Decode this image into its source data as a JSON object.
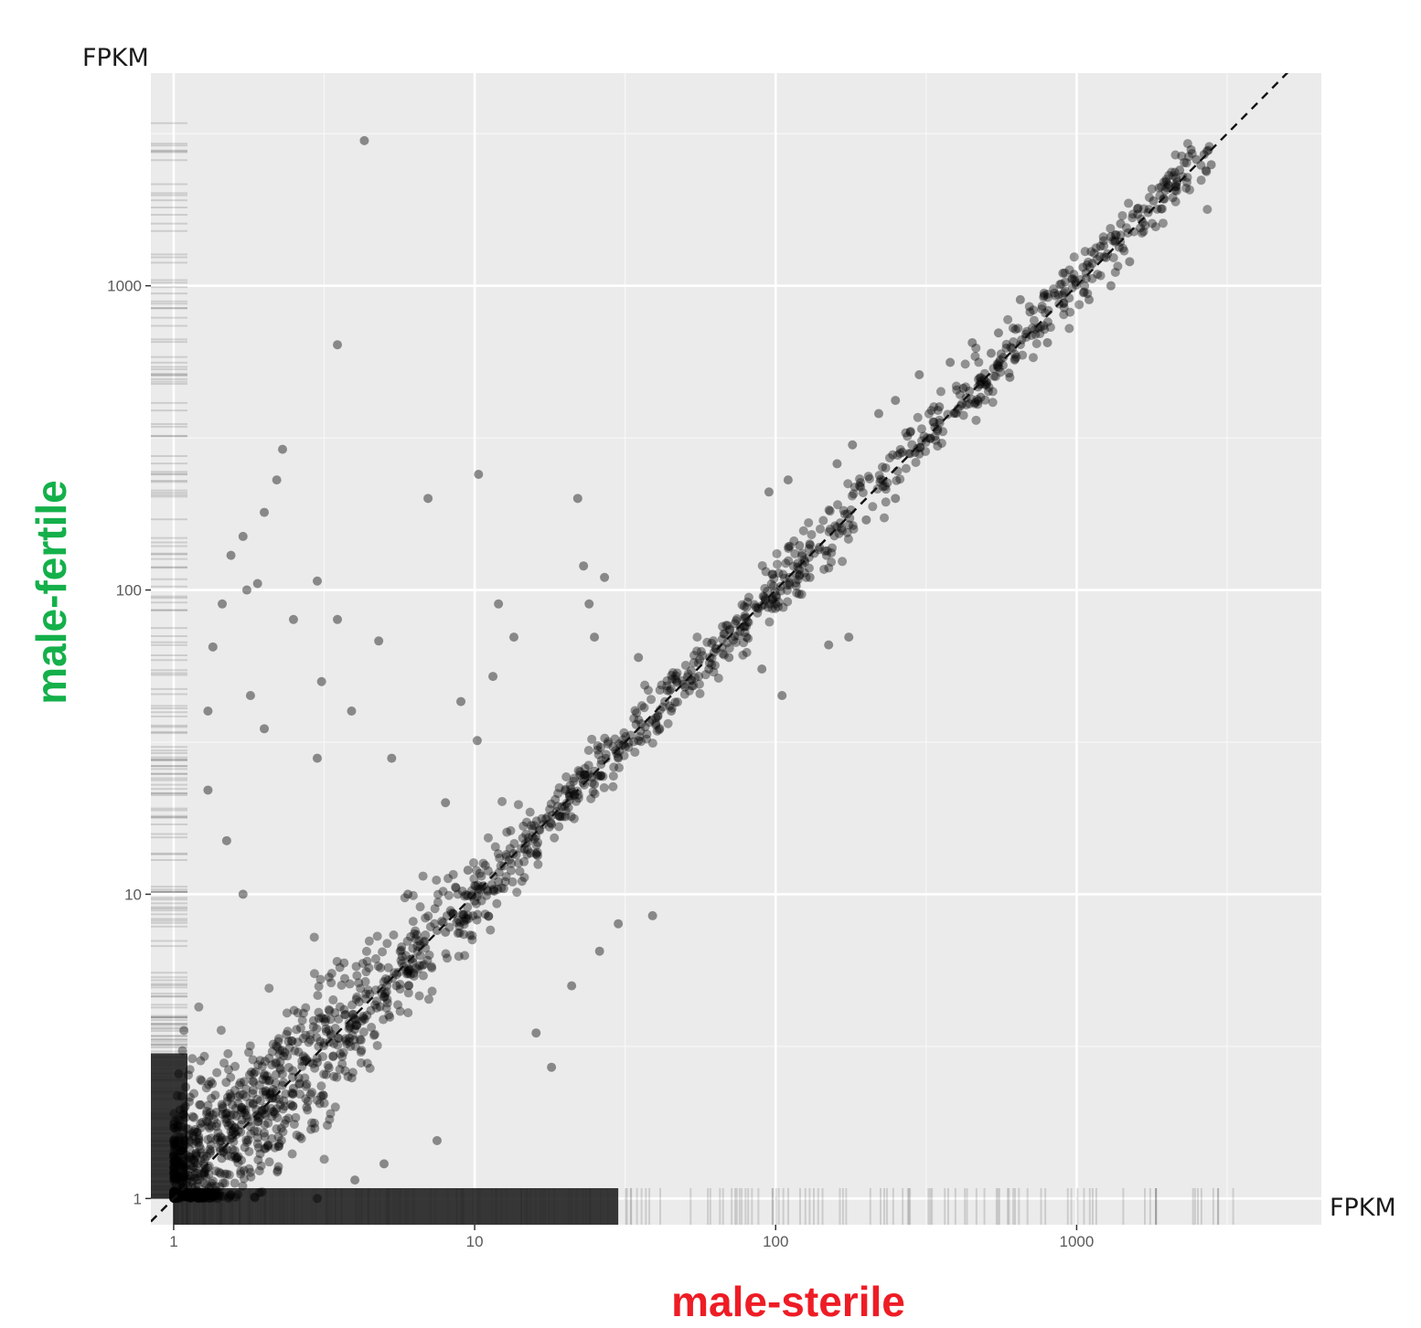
{
  "chart_data": {
    "type": "scatter",
    "title": "",
    "xlabel": "male-sterile",
    "ylabel": "male-fertile",
    "x_unit_label": "FPKM",
    "y_unit_label": "FPKM",
    "x_scale": "log10",
    "y_scale": "log10",
    "xlim": [
      0.84,
      6500
    ],
    "ylim": [
      0.82,
      5000
    ],
    "x_ticks": [
      1,
      10,
      100,
      1000
    ],
    "y_ticks": [
      1,
      10,
      100,
      1000
    ],
    "x_tick_labels": [
      "1",
      "10",
      "100",
      "1000"
    ],
    "y_tick_labels": [
      "1",
      "10",
      "100",
      "1000"
    ],
    "grid": true,
    "legend": "none",
    "reference_line": "y = x (dashed)",
    "marginal_rugs": true,
    "colors": {
      "panel_background": "#ebebeb",
      "grid_line": "#ffffff",
      "point": "#000000",
      "xlabel": "#ee1c25",
      "ylabel": "#14b04a"
    },
    "series": [
      {
        "values_note": "",
        "points": [
          [
            4.3,
            3000
          ],
          [
            3.5,
            640
          ],
          [
            2.3,
            290
          ],
          [
            2.2,
            230
          ],
          [
            1.7,
            150
          ],
          [
            2.0,
            180
          ],
          [
            1.55,
            130
          ],
          [
            1.9,
            105
          ],
          [
            1.75,
            100
          ],
          [
            2.5,
            80
          ],
          [
            1.35,
            65
          ],
          [
            1.45,
            90
          ],
          [
            1.8,
            45
          ],
          [
            1.3,
            40
          ],
          [
            2.0,
            35
          ],
          [
            1.3,
            22
          ],
          [
            1.5,
            15
          ],
          [
            1.7,
            10
          ],
          [
            3.0,
            107
          ],
          [
            3.5,
            80
          ],
          [
            3.1,
            50
          ],
          [
            4.8,
            68
          ],
          [
            5.3,
            28
          ],
          [
            3.0,
            28
          ],
          [
            3.9,
            40
          ],
          [
            7.0,
            200
          ],
          [
            10.3,
            240
          ],
          [
            12.0,
            90
          ],
          [
            13.5,
            70
          ],
          [
            11.5,
            52
          ],
          [
            10.2,
            32
          ],
          [
            9.0,
            43
          ],
          [
            8.0,
            20
          ],
          [
            9.5,
            12
          ],
          [
            7.5,
            7.6
          ],
          [
            5.5,
            5.0
          ],
          [
            6.0,
            10
          ],
          [
            22.0,
            200
          ],
          [
            23.0,
            120
          ],
          [
            24.0,
            90
          ],
          [
            25.0,
            70
          ],
          [
            27.0,
            110
          ],
          [
            35.0,
            60
          ],
          [
            40.0,
            38
          ],
          [
            30.0,
            8.0
          ],
          [
            26.0,
            6.5
          ],
          [
            39.0,
            8.5
          ],
          [
            21.0,
            5.0
          ],
          [
            16.0,
            3.5
          ],
          [
            18.0,
            2.7
          ],
          [
            7.5,
            1.55
          ],
          [
            4.0,
            1.15
          ],
          [
            3.0,
            1.0
          ],
          [
            5.0,
            1.3
          ],
          [
            90.0,
            55
          ],
          [
            105.0,
            45
          ],
          [
            95.0,
            210
          ],
          [
            110.0,
            230
          ],
          [
            150.0,
            66
          ],
          [
            175.0,
            70
          ],
          [
            160.0,
            260
          ],
          [
            180.0,
            300
          ],
          [
            220.0,
            380
          ],
          [
            250.0,
            420
          ],
          [
            300.0,
            510
          ],
          [
            380.0,
            560
          ],
          [
            450.0,
            650
          ],
          [
            550.0,
            700
          ],
          [
            650.0,
            900
          ],
          [
            780.0,
            930
          ],
          [
            900.0,
            1100
          ],
          [
            1050.0,
            1150
          ],
          [
            1200.0,
            1350
          ],
          [
            1300.0,
            1450
          ],
          [
            1400.0,
            1600
          ],
          [
            1600.0,
            1800
          ],
          [
            1800.0,
            1900
          ],
          [
            2000.0,
            2100
          ],
          [
            2200.0,
            2400
          ],
          [
            2500.0,
            2600
          ],
          [
            2650.0,
            2700
          ],
          [
            2800.0,
            2500
          ],
          [
            2400.0,
            2800
          ],
          [
            1300.0,
            1000
          ],
          [
            1500.0,
            1200
          ],
          [
            1100.0,
            900
          ],
          [
            800.0,
            650
          ],
          [
            600.0,
            500
          ],
          [
            700.0,
            820
          ],
          [
            480.0,
            430
          ],
          [
            520.0,
            600
          ],
          [
            420.0,
            460
          ],
          [
            300.0,
            280
          ],
          [
            250.0,
            200
          ],
          [
            350.0,
            400
          ],
          [
            280.0,
            330
          ],
          [
            200.0,
            170
          ],
          [
            190.0,
            220
          ],
          [
            130.0,
            110
          ],
          [
            120.0,
            140
          ],
          [
            100.0,
            90
          ],
          [
            80.0,
            70
          ],
          [
            70.0,
            60
          ],
          [
            60.0,
            55
          ],
          [
            50.0,
            48
          ],
          [
            45.0,
            40
          ],
          [
            40.0,
            36
          ],
          [
            35.0,
            32
          ],
          [
            30.0,
            28
          ],
          [
            25.0,
            23
          ],
          [
            20.0,
            18
          ],
          [
            18.0,
            17
          ],
          [
            15.0,
            14
          ],
          [
            12.0,
            11
          ],
          [
            10.0,
            9.5
          ],
          [
            8.0,
            7.5
          ],
          [
            6.0,
            5.5
          ],
          [
            5.0,
            4.6
          ],
          [
            4.0,
            3.6
          ],
          [
            3.0,
            2.8
          ],
          [
            2.5,
            2.3
          ],
          [
            2.0,
            1.9
          ],
          [
            1.5,
            1.45
          ],
          [
            1.2,
            1.15
          ],
          [
            1.1,
            1.05
          ]
        ]
      }
    ]
  }
}
